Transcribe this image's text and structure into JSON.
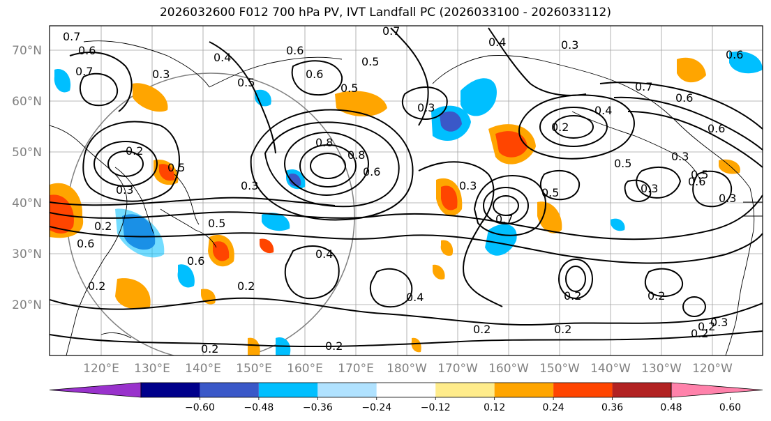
{
  "title": "2026032600 F012 700 hPa PV, IVT Landfall PC (2026033100 - 2026033112)",
  "lat_labels": [
    "70°N",
    "60°N",
    "50°N",
    "40°N",
    "30°N",
    "20°N"
  ],
  "lon_labels": [
    "120°E",
    "130°E",
    "140°E",
    "150°E",
    "160°E",
    "170°E",
    "180°W",
    "170°W",
    "160°W",
    "150°W",
    "140°W",
    "130°W",
    "120°W"
  ],
  "colorbar": {
    "colors": [
      "#9932cc",
      "#00008b",
      "#3a58c8",
      "#00bfff",
      "#b0e2ff",
      "#ffffff",
      "#ffec8b",
      "#ffa500",
      "#ff4500",
      "#b22222",
      "#ff82ab"
    ],
    "ticks": [
      "−0.60",
      "−0.48",
      "−0.36",
      "−0.24",
      "−0.12",
      "0.12",
      "0.24",
      "0.36",
      "0.48",
      "0.60"
    ]
  },
  "contour_labels": [
    "0.7",
    "0.6",
    "0.4",
    "0.3",
    "0.5",
    "0.6",
    "0.5",
    "0.7",
    "0.6",
    "0.4",
    "0.3",
    "0.5",
    "0.8",
    "0.8",
    "0.6",
    "0.3",
    "0.5",
    "0.2",
    "0.4",
    "0.2",
    "0.2",
    "0.2",
    "0.3",
    "0.7",
    "0.5",
    "0.2",
    "0.6",
    "0.7",
    "0.3",
    "0.2",
    "0.6",
    "0.4",
    "0.5",
    "0.3",
    "0.2",
    "0.4",
    "0.2",
    "0.2",
    "0.2",
    "0.3",
    "0.6",
    "0.7",
    "0.6",
    "0.6",
    "0.3",
    "0.5",
    "0.5",
    "0.6",
    "0.3",
    "0.3",
    "0.2",
    "0.2",
    "0.2"
  ]
}
